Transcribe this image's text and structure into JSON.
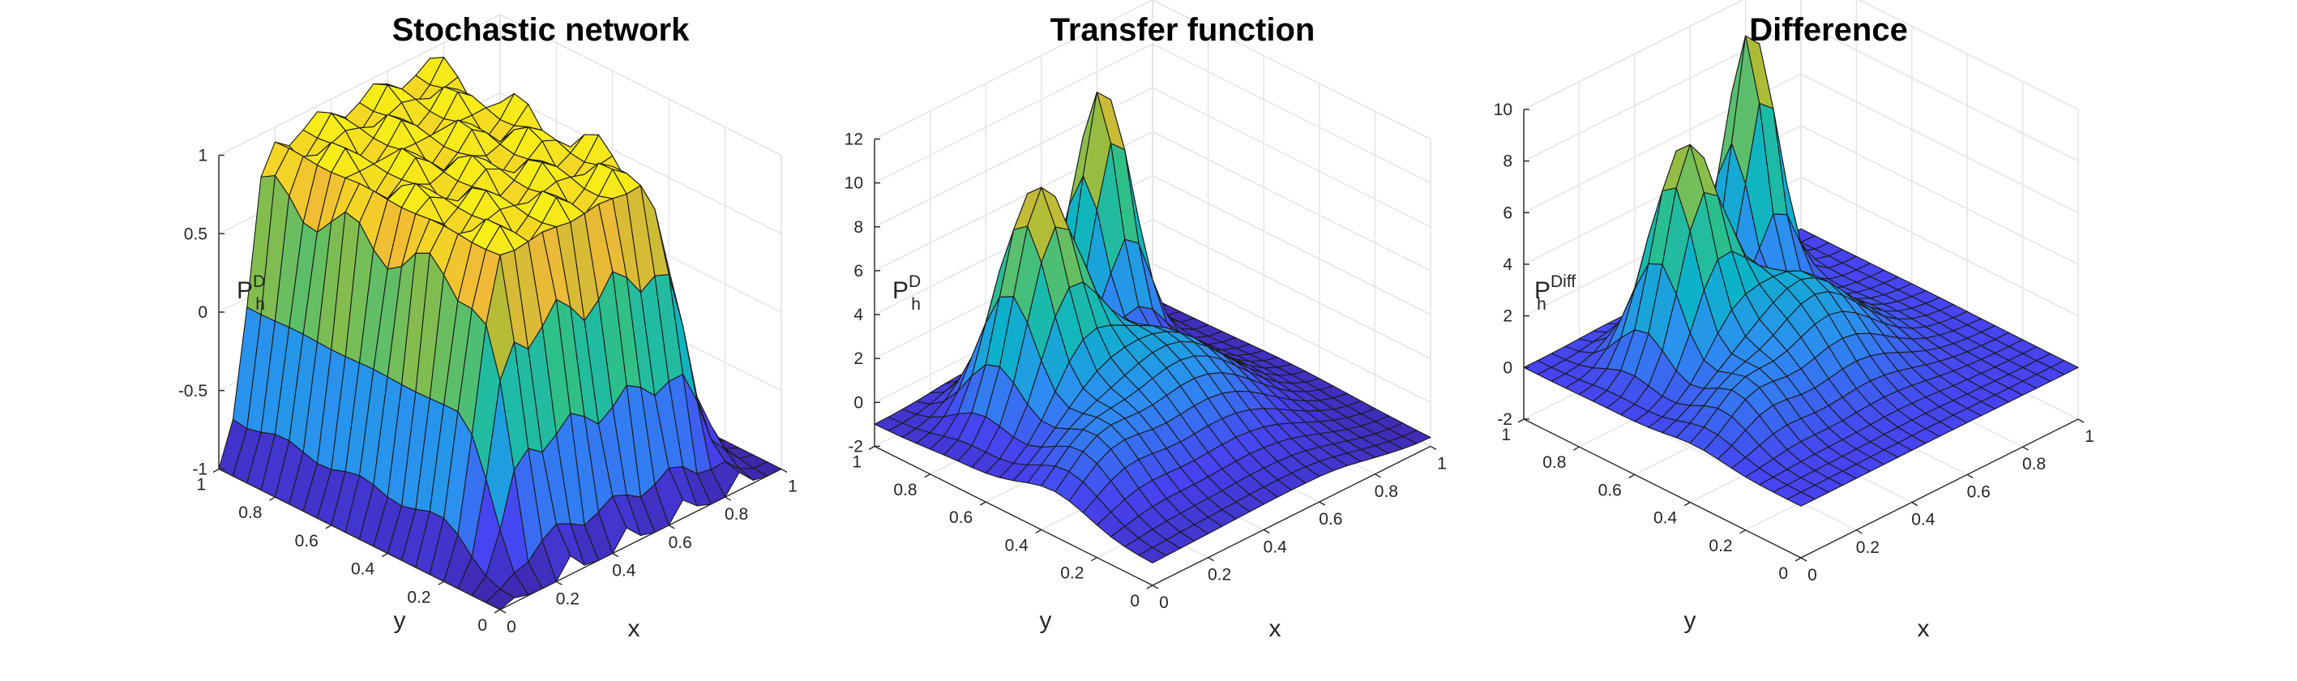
{
  "figure": {
    "panels": [
      {
        "title": "Stochastic network"
      },
      {
        "title": "Transfer function"
      },
      {
        "title": "Difference"
      }
    ]
  },
  "colormap": [
    "#3e26a8",
    "#4743f1",
    "#2d8ef2",
    "#0cb3c8",
    "#2ec089",
    "#a5bc37",
    "#f0ba36",
    "#f9fb0e"
  ],
  "edge_color": "#1a1a1a",
  "chart_data": [
    {
      "type": "surface",
      "title": "Stochastic network",
      "xlabel": "x",
      "ylabel": "y",
      "zlabel_main": "P",
      "zlabel_sub": "h",
      "zlabel_sup": "D",
      "xlim": [
        0,
        1
      ],
      "ylim": [
        0,
        1
      ],
      "zlim": [
        -1,
        1
      ],
      "xticks": [
        0,
        0.2,
        0.4,
        0.6,
        0.8,
        1
      ],
      "yticks": [
        0,
        0.2,
        0.4,
        0.6,
        0.8,
        1
      ],
      "zticks": [
        -1,
        -0.5,
        0,
        0.5,
        1
      ],
      "xtick_labels": [
        "0",
        "0.2",
        "0.4",
        "0.6",
        "0.8",
        "1"
      ],
      "ytick_labels": [
        "0",
        "0.2",
        "0.4",
        "0.6",
        "0.8",
        "1"
      ],
      "ztick_labels": [
        "-1",
        "-0.5",
        "0",
        "0.5",
        "1"
      ],
      "clim": [
        -1,
        1
      ],
      "grid": true,
      "grid_n": 21,
      "view": {
        "azimuth": -45,
        "elevation": 30
      },
      "surface_model": "plateau near 0.9 over the central region, bumpy ridges near the walls, flat at -1 toward the x = 1 edge and along x = 0 / y = 0 ends"
    },
    {
      "type": "surface",
      "title": "Transfer function",
      "xlabel": "x",
      "ylabel": "y",
      "zlabel_main": "P",
      "zlabel_sub": "h",
      "zlabel_sup": "D",
      "xlim": [
        0,
        1
      ],
      "ylim": [
        0,
        1
      ],
      "zlim": [
        -2,
        12
      ],
      "xticks": [
        0,
        0.2,
        0.4,
        0.6,
        0.8,
        1
      ],
      "yticks": [
        0,
        0.2,
        0.4,
        0.6,
        0.8,
        1
      ],
      "zticks": [
        -2,
        0,
        2,
        4,
        6,
        8,
        10,
        12
      ],
      "xtick_labels": [
        "0",
        "0.2",
        "0.4",
        "0.6",
        "0.8",
        "1"
      ],
      "ytick_labels": [
        "0",
        "0.2",
        "0.4",
        "0.6",
        "0.8",
        "1"
      ],
      "ztick_labels": [
        "-2",
        "0",
        "2",
        "4",
        "6",
        "8",
        "10",
        "12"
      ],
      "clim": [
        -2,
        12
      ],
      "grid": true,
      "grid_n": 21,
      "view": {
        "azimuth": -45,
        "elevation": 30
      },
      "surface_model": "two peaks: about 8.5 near (0.3, 0.7) and about 11 near (0.7, 0.9), broad hill near center, baseline near -1 toward x = 1"
    },
    {
      "type": "surface",
      "title": "Difference",
      "xlabel": "x",
      "ylabel": "y",
      "zlabel_main": "P",
      "zlabel_sub": "h",
      "zlabel_sup": "Diff",
      "xlim": [
        0,
        1
      ],
      "ylim": [
        0,
        1
      ],
      "zlim": [
        -2,
        10
      ],
      "xticks": [
        0,
        0.2,
        0.4,
        0.6,
        0.8,
        1
      ],
      "yticks": [
        0,
        0.2,
        0.4,
        0.6,
        0.8,
        1
      ],
      "zticks": [
        -2,
        0,
        2,
        4,
        6,
        8,
        10
      ],
      "xtick_labels": [
        "0",
        "0.2",
        "0.4",
        "0.6",
        "0.8",
        "1"
      ],
      "ytick_labels": [
        "0",
        "0.2",
        "0.4",
        "0.6",
        "0.8",
        "1"
      ],
      "ztick_labels": [
        "-2",
        "0",
        "2",
        "4",
        "6",
        "8",
        "10"
      ],
      "clim": [
        -2,
        12
      ],
      "grid": true,
      "grid_n": 21,
      "view": {
        "azimuth": -45,
        "elevation": 30
      },
      "surface_model": "two peaks: about 7.5 near (0.3, 0.7) and about 10 near (0.7, 0.9), flat near 0 at the corners and edges"
    }
  ]
}
